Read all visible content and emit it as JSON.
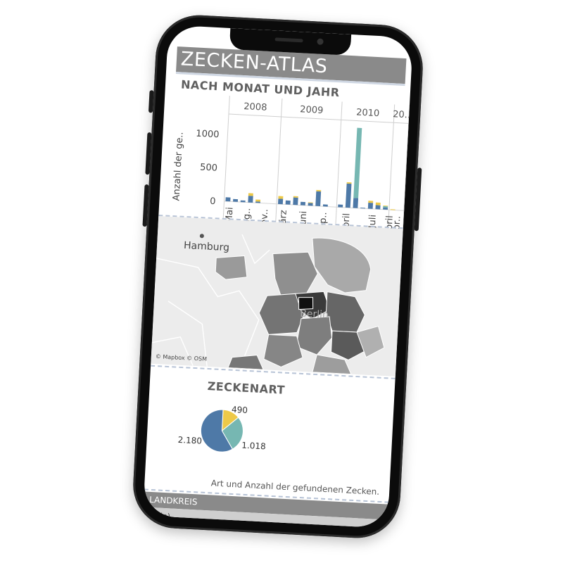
{
  "app": {
    "title": "ZECKEN-ATLAS"
  },
  "colors": {
    "blue": "#4e79a7",
    "teal": "#76b7b2",
    "yellow": "#edc948",
    "header_gray": "#8a8a8a"
  },
  "time_chart": {
    "section_title": "NACH MONAT UND JAHR"
  },
  "map": {
    "city_label": "Hamburg",
    "center_label": "Berlin",
    "attribution": "© Mapbox © OSM"
  },
  "species": {
    "section_title": "ZECKENART",
    "caption": "Art und Anzahl der gefundenen Zecken."
  },
  "filter": {
    "label": "LANDKREIS",
    "selected": "(Alle)"
  },
  "chart_data": [
    {
      "type": "bar",
      "title": "NACH MONAT UND JAHR",
      "ylabel": "Anzahl der ge..",
      "ylim": [
        0,
        1200
      ],
      "yticks": [
        0,
        500,
        1000
      ],
      "years": [
        {
          "label": "2008",
          "tick_labels": [
            "Mai",
            "Aug..",
            "Nov.."
          ]
        },
        {
          "label": "2009",
          "tick_labels": [
            "März",
            "Juni",
            "Sep.."
          ]
        },
        {
          "label": "2010",
          "tick_labels": [
            "April",
            "Juli"
          ]
        },
        {
          "label": "20..",
          "tick_labels": [
            "April",
            "Febr.."
          ]
        }
      ],
      "series": [
        {
          "name": "blue",
          "color": "#4e79a7",
          "values": [
            60,
            40,
            25,
            100,
            20,
            0,
            0,
            80,
            60,
            110,
            50,
            40,
            220,
            30,
            0,
            40,
            360,
            150,
            10,
            90,
            60,
            30,
            0,
            0
          ]
        },
        {
          "name": "teal",
          "color": "#76b7b2",
          "values": [
            0,
            0,
            0,
            0,
            0,
            0,
            0,
            0,
            0,
            0,
            0,
            0,
            0,
            0,
            0,
            0,
            0,
            1050,
            0,
            0,
            0,
            20,
            0,
            0
          ]
        },
        {
          "name": "yellow",
          "color": "#edc948",
          "values": [
            0,
            0,
            0,
            40,
            30,
            0,
            0,
            40,
            0,
            20,
            0,
            10,
            20,
            0,
            0,
            0,
            20,
            0,
            0,
            30,
            40,
            10,
            10,
            0
          ]
        }
      ],
      "groups": [
        7,
        8,
        7,
        2
      ]
    },
    {
      "type": "pie",
      "title": "ZECKENART",
      "slices": [
        {
          "label": "490",
          "value": 490,
          "color": "#edc948"
        },
        {
          "label": "1.018",
          "value": 1018,
          "color": "#76b7b2"
        },
        {
          "label": "2.180",
          "value": 2180,
          "color": "#4e79a7"
        }
      ]
    }
  ]
}
